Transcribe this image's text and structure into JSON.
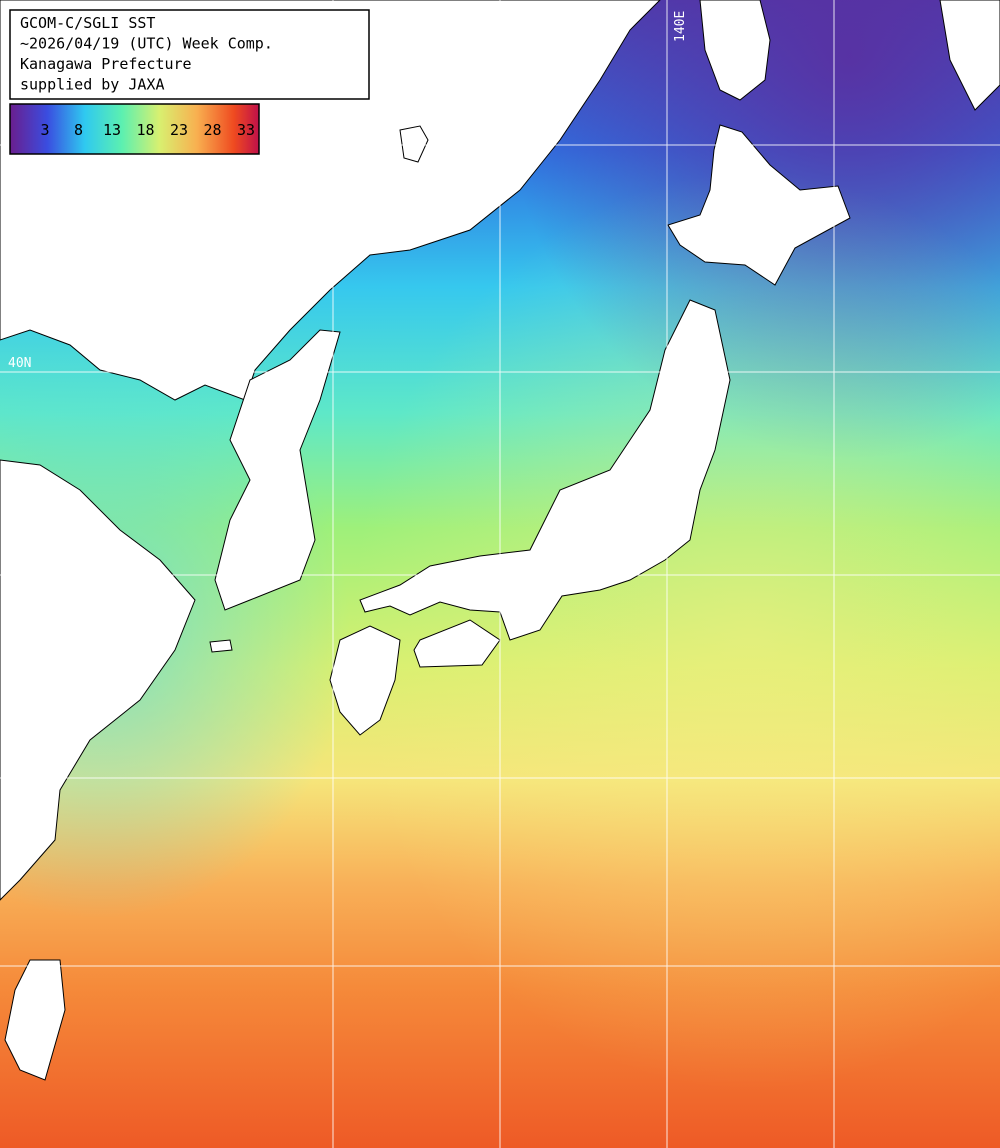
{
  "header": {
    "lines": [
      "GCOM-C/SGLI SST",
      "~2026/04/19 (UTC) Week Comp.",
      "Kanagawa Prefecture",
      "supplied by JAXA"
    ]
  },
  "colorbar": {
    "ticks": [
      3,
      8,
      13,
      18,
      23,
      28,
      33
    ]
  },
  "grid_labels": {
    "longitude": "140E",
    "latitude": "40N"
  }
}
